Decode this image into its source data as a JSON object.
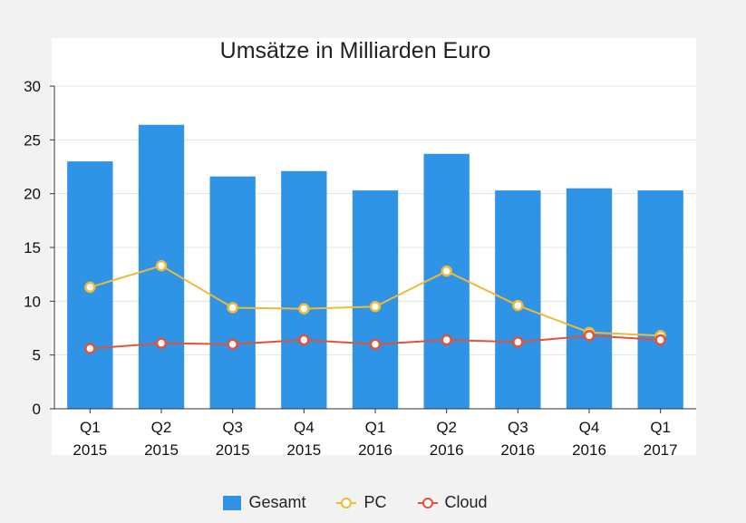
{
  "chart_data": {
    "type": "bar",
    "title": "Umsätze in Milliarden Euro",
    "categories": [
      [
        "Q1",
        "2015"
      ],
      [
        "Q2",
        "2015"
      ],
      [
        "Q3",
        "2015"
      ],
      [
        "Q4",
        "2015"
      ],
      [
        "Q1",
        "2016"
      ],
      [
        "Q2",
        "2016"
      ],
      [
        "Q3",
        "2016"
      ],
      [
        "Q4",
        "2016"
      ],
      [
        "Q1",
        "2017"
      ]
    ],
    "ylim": [
      0,
      30
    ],
    "yticks": [
      "0",
      "5",
      "10",
      "15",
      "20",
      "25",
      "30"
    ],
    "grid": true,
    "legend_position": "bottom",
    "series": [
      {
        "name": "Gesamt",
        "type": "bar",
        "color": "#2f93e6",
        "values": [
          23.0,
          26.4,
          21.6,
          22.1,
          20.3,
          23.7,
          20.3,
          20.5,
          20.3
        ]
      },
      {
        "name": "PC",
        "type": "line",
        "color": "#f0b93a",
        "values": [
          11.3,
          13.3,
          9.4,
          9.3,
          9.5,
          12.8,
          9.6,
          7.1,
          6.8
        ]
      },
      {
        "name": "Cloud",
        "type": "line",
        "color": "#e0533a",
        "values": [
          5.6,
          6.1,
          6.0,
          6.4,
          6.0,
          6.4,
          6.2,
          6.8,
          6.4
        ]
      }
    ]
  }
}
